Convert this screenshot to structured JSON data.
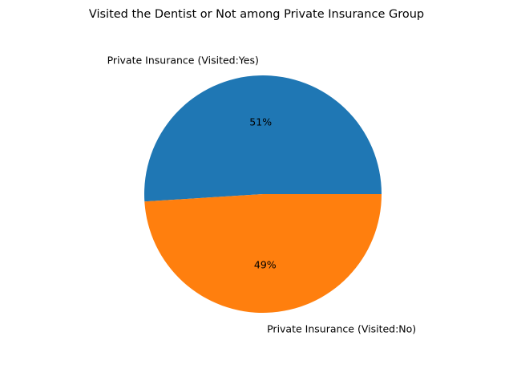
{
  "chart_data": {
    "type": "pie",
    "title": "Visited the Dentist or Not among Private Insurance Group",
    "labels": [
      "Private Insurance (Visited:Yes)",
      "Private Insurance (Visited:No)"
    ],
    "values": [
      51,
      49
    ],
    "autopct": [
      "51%",
      "49%"
    ],
    "colors": [
      "#1f77b4",
      "#ff7f0e"
    ],
    "start_angle_deg": 0,
    "direction": "counterclockwise",
    "legend": "none"
  }
}
